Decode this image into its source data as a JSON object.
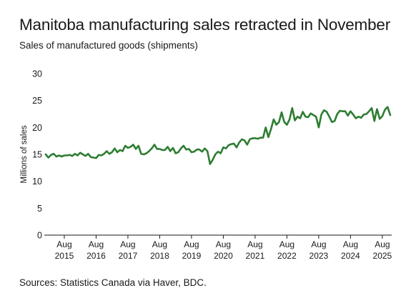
{
  "title": "Manitoba manufacturing sales retracted in November",
  "subtitle": "Sales of manufactured goods (shipments)",
  "source": "Sources: Statistics Canada via Haver, BDC.",
  "chart_data": {
    "type": "line",
    "ylabel": "Millions of sales",
    "ylim": [
      0,
      30
    ],
    "yticks": [
      0,
      5,
      10,
      15,
      20,
      25,
      30
    ],
    "grid": false,
    "x_start": "2015-01",
    "x_end": "2025-11",
    "x_ticks": [
      {
        "month": "Aug",
        "year": "2015"
      },
      {
        "month": "Aug",
        "year": "2016"
      },
      {
        "month": "Aug",
        "year": "2017"
      },
      {
        "month": "Aug",
        "year": "2018"
      },
      {
        "month": "Aug",
        "year": "2019"
      },
      {
        "month": "Aug",
        "year": "2020"
      },
      {
        "month": "Aug",
        "year": "2021"
      },
      {
        "month": "Aug",
        "year": "2022"
      },
      {
        "month": "Aug",
        "year": "2023"
      },
      {
        "month": "Aug",
        "year": "2024"
      },
      {
        "month": "Aug",
        "year": "2025"
      }
    ],
    "line_color": "#2e7d32",
    "series": [
      {
        "values": [
          15.0,
          14.4,
          14.9,
          15.1,
          14.6,
          14.8,
          14.6,
          14.8,
          14.8,
          14.9,
          14.7,
          15.1,
          14.8,
          15.3,
          15.0,
          14.7,
          15.1,
          14.5,
          14.4,
          14.3,
          14.9,
          14.8,
          15.1,
          15.6,
          15.1,
          15.4,
          16.1,
          15.4,
          15.8,
          15.6,
          16.6,
          16.2,
          16.4,
          16.8,
          16.0,
          16.6,
          15.1,
          15.0,
          15.2,
          15.6,
          16.1,
          16.8,
          16.0,
          16.0,
          15.8,
          15.8,
          16.4,
          15.6,
          16.2,
          15.2,
          15.4,
          16.1,
          16.6,
          15.9,
          16.0,
          15.4,
          15.5,
          15.9,
          15.9,
          15.5,
          16.1,
          15.6,
          13.2,
          14.0,
          15.0,
          15.5,
          15.2,
          16.3,
          16.1,
          16.7,
          16.9,
          17.0,
          16.3,
          17.2,
          17.8,
          17.6,
          16.8,
          17.8,
          18.0,
          18.0,
          17.9,
          18.1,
          18.1,
          20.0,
          18.2,
          19.7,
          21.5,
          20.5,
          21.0,
          22.8,
          21.0,
          20.5,
          21.5,
          23.6,
          21.3,
          22.0,
          21.7,
          22.9,
          22.0,
          21.9,
          22.6,
          22.3,
          22.0,
          20.0,
          22.4,
          23.2,
          22.9,
          22.0,
          21.0,
          21.2,
          22.5,
          23.1,
          23.0,
          23.0,
          22.2,
          23.0,
          22.4,
          21.7,
          22.0,
          21.8,
          22.4,
          22.5,
          23.0,
          23.6,
          21.2,
          23.4,
          21.6,
          22.1,
          23.3,
          23.8,
          22.3
        ]
      }
    ]
  }
}
